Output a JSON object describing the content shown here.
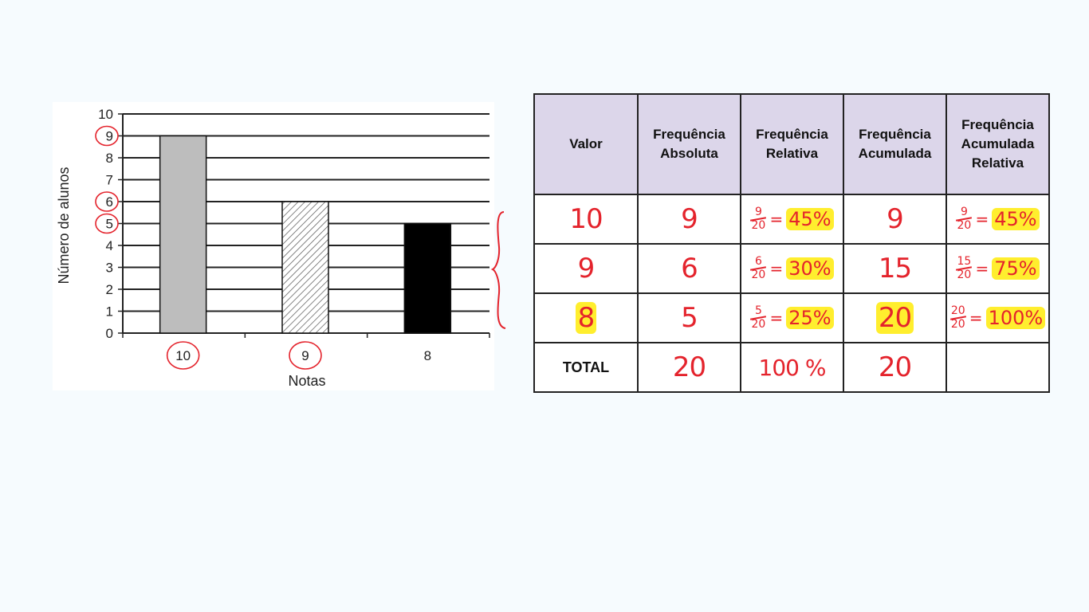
{
  "chart_data": {
    "type": "bar",
    "xlabel": "Notas",
    "ylabel": "Número de alunos",
    "ylim": [
      0,
      10
    ],
    "yticks": [
      "0",
      "1",
      "2",
      "3",
      "4",
      "5",
      "6",
      "7",
      "8",
      "9",
      "10"
    ],
    "categories": [
      "10",
      "9",
      "8"
    ],
    "values": [
      9,
      6,
      5
    ],
    "bar_styles": [
      "gray",
      "hatched",
      "black"
    ],
    "grid": true,
    "colors": {
      "bar_10": "#bdbdbd",
      "bar_9": "#ffffff",
      "bar_8": "#000000",
      "annotation": "#e4232c"
    }
  },
  "table": {
    "headers": [
      "Valor",
      "Frequência Absoluta",
      "Frequência Relativa",
      "Frequência Acumulada",
      "Frequência Acumulada Relativa"
    ],
    "rows": [
      {
        "valor": "10",
        "absoluta": "9",
        "relativa": {
          "num": "9",
          "den": "20",
          "eq": "=",
          "pct": "45%"
        },
        "acumulada": "9",
        "acum_relativa": {
          "num": "9",
          "den": "20",
          "eq": "=",
          "pct": "45%"
        }
      },
      {
        "valor": "9",
        "absoluta": "6",
        "relativa": {
          "num": "6",
          "den": "20",
          "eq": "=",
          "pct": "30%"
        },
        "acumulada": "15",
        "acum_relativa": {
          "num": "15",
          "den": "20",
          "eq": "=",
          "pct": "75%"
        }
      },
      {
        "valor": "8",
        "absoluta": "5",
        "relativa": {
          "num": "5",
          "den": "20",
          "eq": "=",
          "pct": "25%"
        },
        "acumulada": "20",
        "acum_relativa": {
          "num": "20",
          "den": "20",
          "eq": "=",
          "pct": "100%"
        }
      }
    ],
    "total": {
      "label": "TOTAL",
      "absoluta": "20",
      "relativa": "100 %",
      "acumulada": "20",
      "acum_relativa": ""
    }
  }
}
